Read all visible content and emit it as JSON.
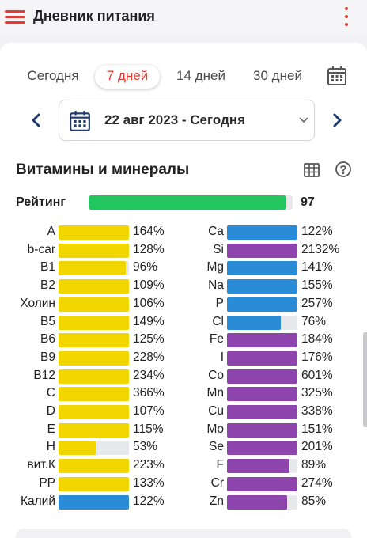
{
  "app": {
    "title": "Дневник питания"
  },
  "tabs": [
    {
      "label": "Сегодня",
      "active": false
    },
    {
      "label": "7 дней",
      "active": true
    },
    {
      "label": "14 дней",
      "active": false
    },
    {
      "label": "30 дней",
      "active": false
    }
  ],
  "date_selector": {
    "text": "22 авг 2023 - Сегодня"
  },
  "section": {
    "title": "Витамины и минералы"
  },
  "rating": {
    "label": "Рейтинг",
    "value": "97",
    "fraction": 0.97
  },
  "colors": {
    "accent": "#e53935",
    "vitamin": "#f2d600",
    "electrolyte": "#2a8cd6",
    "mineral": "#8e44ad",
    "rating": "#22c55e"
  },
  "left_nutrients": [
    {
      "label": "A",
      "pct": "164%",
      "fill": 1.0,
      "kind": "vitamin"
    },
    {
      "label": "b-car",
      "pct": "128%",
      "fill": 1.0,
      "kind": "vitamin"
    },
    {
      "label": "B1",
      "pct": "96%",
      "fill": 0.96,
      "kind": "vitamin"
    },
    {
      "label": "B2",
      "pct": "109%",
      "fill": 1.0,
      "kind": "vitamin"
    },
    {
      "label": "Холин",
      "pct": "106%",
      "fill": 1.0,
      "kind": "vitamin"
    },
    {
      "label": "B5",
      "pct": "149%",
      "fill": 1.0,
      "kind": "vitamin"
    },
    {
      "label": "B6",
      "pct": "125%",
      "fill": 1.0,
      "kind": "vitamin"
    },
    {
      "label": "B9",
      "pct": "228%",
      "fill": 1.0,
      "kind": "vitamin"
    },
    {
      "label": "B12",
      "pct": "234%",
      "fill": 1.0,
      "kind": "vitamin"
    },
    {
      "label": "C",
      "pct": "366%",
      "fill": 1.0,
      "kind": "vitamin"
    },
    {
      "label": "D",
      "pct": "107%",
      "fill": 1.0,
      "kind": "vitamin"
    },
    {
      "label": "E",
      "pct": "115%",
      "fill": 1.0,
      "kind": "vitamin"
    },
    {
      "label": "H",
      "pct": "53%",
      "fill": 0.53,
      "kind": "vitamin"
    },
    {
      "label": "вит.К",
      "pct": "223%",
      "fill": 1.0,
      "kind": "vitamin"
    },
    {
      "label": "PP",
      "pct": "133%",
      "fill": 1.0,
      "kind": "vitamin"
    },
    {
      "label": "Калий",
      "pct": "122%",
      "fill": 1.0,
      "kind": "electrolyte"
    }
  ],
  "right_nutrients": [
    {
      "label": "Ca",
      "pct": "122%",
      "fill": 1.0,
      "kind": "electrolyte"
    },
    {
      "label": "Si",
      "pct": "2132%",
      "fill": 1.0,
      "kind": "mineral"
    },
    {
      "label": "Mg",
      "pct": "141%",
      "fill": 1.0,
      "kind": "electrolyte"
    },
    {
      "label": "Na",
      "pct": "155%",
      "fill": 1.0,
      "kind": "electrolyte"
    },
    {
      "label": "P",
      "pct": "257%",
      "fill": 1.0,
      "kind": "electrolyte"
    },
    {
      "label": "Cl",
      "pct": "76%",
      "fill": 0.76,
      "kind": "electrolyte"
    },
    {
      "label": "Fe",
      "pct": "184%",
      "fill": 1.0,
      "kind": "mineral"
    },
    {
      "label": "I",
      "pct": "176%",
      "fill": 1.0,
      "kind": "mineral"
    },
    {
      "label": "Co",
      "pct": "601%",
      "fill": 1.0,
      "kind": "mineral"
    },
    {
      "label": "Mn",
      "pct": "325%",
      "fill": 1.0,
      "kind": "mineral"
    },
    {
      "label": "Cu",
      "pct": "338%",
      "fill": 1.0,
      "kind": "mineral"
    },
    {
      "label": "Mo",
      "pct": "151%",
      "fill": 1.0,
      "kind": "mineral"
    },
    {
      "label": "Se",
      "pct": "201%",
      "fill": 1.0,
      "kind": "mineral"
    },
    {
      "label": "F",
      "pct": "89%",
      "fill": 0.89,
      "kind": "mineral"
    },
    {
      "label": "Cr",
      "pct": "274%",
      "fill": 1.0,
      "kind": "mineral"
    },
    {
      "label": "Zn",
      "pct": "85%",
      "fill": 0.85,
      "kind": "mineral"
    }
  ],
  "icons": {
    "menu": "hamburger-menu-icon",
    "more": "more-vertical-icon",
    "calendar": "calendar-icon",
    "prev": "chevron-left-icon",
    "next": "chevron-right-icon",
    "dropdown": "chevron-down-icon",
    "table": "table-icon",
    "help": "help-circle-icon"
  }
}
